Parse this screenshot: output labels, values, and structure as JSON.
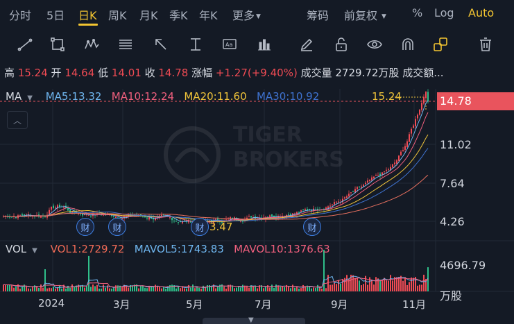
{
  "tabs": {
    "items": [
      "分时",
      "5日",
      "日K",
      "周K",
      "月K",
      "季K",
      "年K",
      "更多"
    ],
    "right": [
      "筹码",
      "前复权",
      "%",
      "Log",
      "Auto"
    ],
    "active": "日K"
  },
  "toolbar_icons": [
    "line-tool-icon",
    "rectangle-tool-icon",
    "wave-tool-icon",
    "fibonacci-tool-icon",
    "arrow-tool-icon",
    "text-cursor-tool-icon",
    "text-box-tool-icon",
    "bar-tool-icon",
    "pencil-icon",
    "unlock-icon",
    "eye-icon",
    "magnet-icon",
    "link-icon",
    "trash-icon"
  ],
  "quote": {
    "high_label": "高",
    "high": "15.24",
    "open_label": "开",
    "open": "14.64",
    "low_label": "低",
    "low": "14.01",
    "close_label": "收",
    "close": "14.78",
    "change_label": "涨幅",
    "change": "+1.27(+9.40%)",
    "volume_label": "成交量",
    "volume": "2729.72万股",
    "amount_label": "成交额..."
  },
  "ma_legend": {
    "label": "MA",
    "ma5": "MA5:13.32",
    "ma10": "MA10:12.24",
    "ma20": "MA20:11.60",
    "ma30": "MA30:10.92"
  },
  "price_axis": {
    "current": "14.78",
    "ticks": [
      "11.02",
      "7.64",
      "4.26"
    ],
    "high_marker": "15.24",
    "low_marker": "3.47"
  },
  "vol_legend": {
    "label": "VOL",
    "vol1": "VOL1:2729.72",
    "mavol5": "MAVOL5:1743.83",
    "mavol10": "MAVOL10:1376.63"
  },
  "vol_axis": {
    "max": "4696.79",
    "unit": "万股"
  },
  "dates": [
    "2024",
    "3月",
    "5月",
    "7月",
    "9月",
    "11月"
  ],
  "finance_marker": "财",
  "watermark": {
    "line1": "TIGER",
    "line2": "BROKERS"
  },
  "colors": {
    "up": "#ef4b54",
    "down": "#2fbf8a",
    "accent": "#f3c531",
    "ma5": "#6fb6ef",
    "ma10": "#ef5f7d",
    "ma20": "#f0c43a",
    "ma30": "#3f73d1"
  }
}
